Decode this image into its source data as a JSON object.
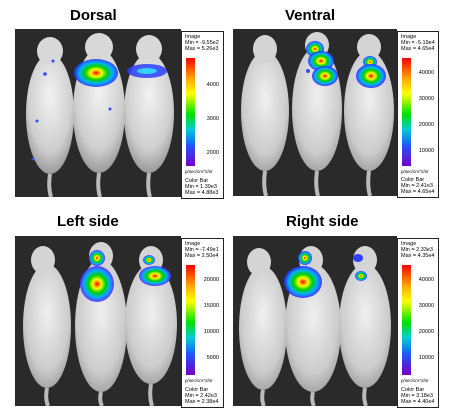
{
  "titles": {
    "dorsal": "Dorsal",
    "ventral": "Ventral",
    "left": "Left side",
    "right": "Right side"
  },
  "scales": {
    "dorsal": {
      "image_label": "Image",
      "image_min": "Min = -9.55e2",
      "image_max": "Max = 5.26e3",
      "ticks": [
        "4000",
        "3000",
        "2000"
      ],
      "unit": "p/sec/cm^2/sr",
      "cbar_label": "Color Bar",
      "cbar_min": "Min = 1.39e3",
      "cbar_max": "Max = 4.88e3"
    },
    "ventral": {
      "image_label": "Image",
      "image_min": "Min = -5.19e4",
      "image_max": "Max = 4.65e4",
      "ticks": [
        "40000",
        "30000",
        "20000",
        "10000"
      ],
      "unit": "p/sec/cm^2/sr",
      "cbar_label": "Color Bar",
      "cbar_min": "Min = 2.41e3",
      "cbar_max": "Max = 4.65e4"
    },
    "left": {
      "image_label": "Image",
      "image_min": "Min = -7.49e1",
      "image_max": "Max = 2.50e4",
      "ticks": [
        "20000",
        "15000",
        "10000",
        "5000"
      ],
      "unit": "p/sec/cm^2/sr",
      "cbar_label": "Color Bar",
      "cbar_min": "Min = 2.42e3",
      "cbar_max": "Max = 2.38e4"
    },
    "right": {
      "image_label": "Image",
      "image_min": "Min = 2.33e3",
      "image_max": "Max = 4.35e4",
      "ticks": [
        "40000",
        "30000",
        "20000",
        "10000"
      ],
      "unit": "p/sec/cm^2/sr",
      "cbar_label": "Color Bar",
      "cbar_min": "Min = 3.18e3",
      "cbar_max": "Max = 4.40e4"
    }
  }
}
